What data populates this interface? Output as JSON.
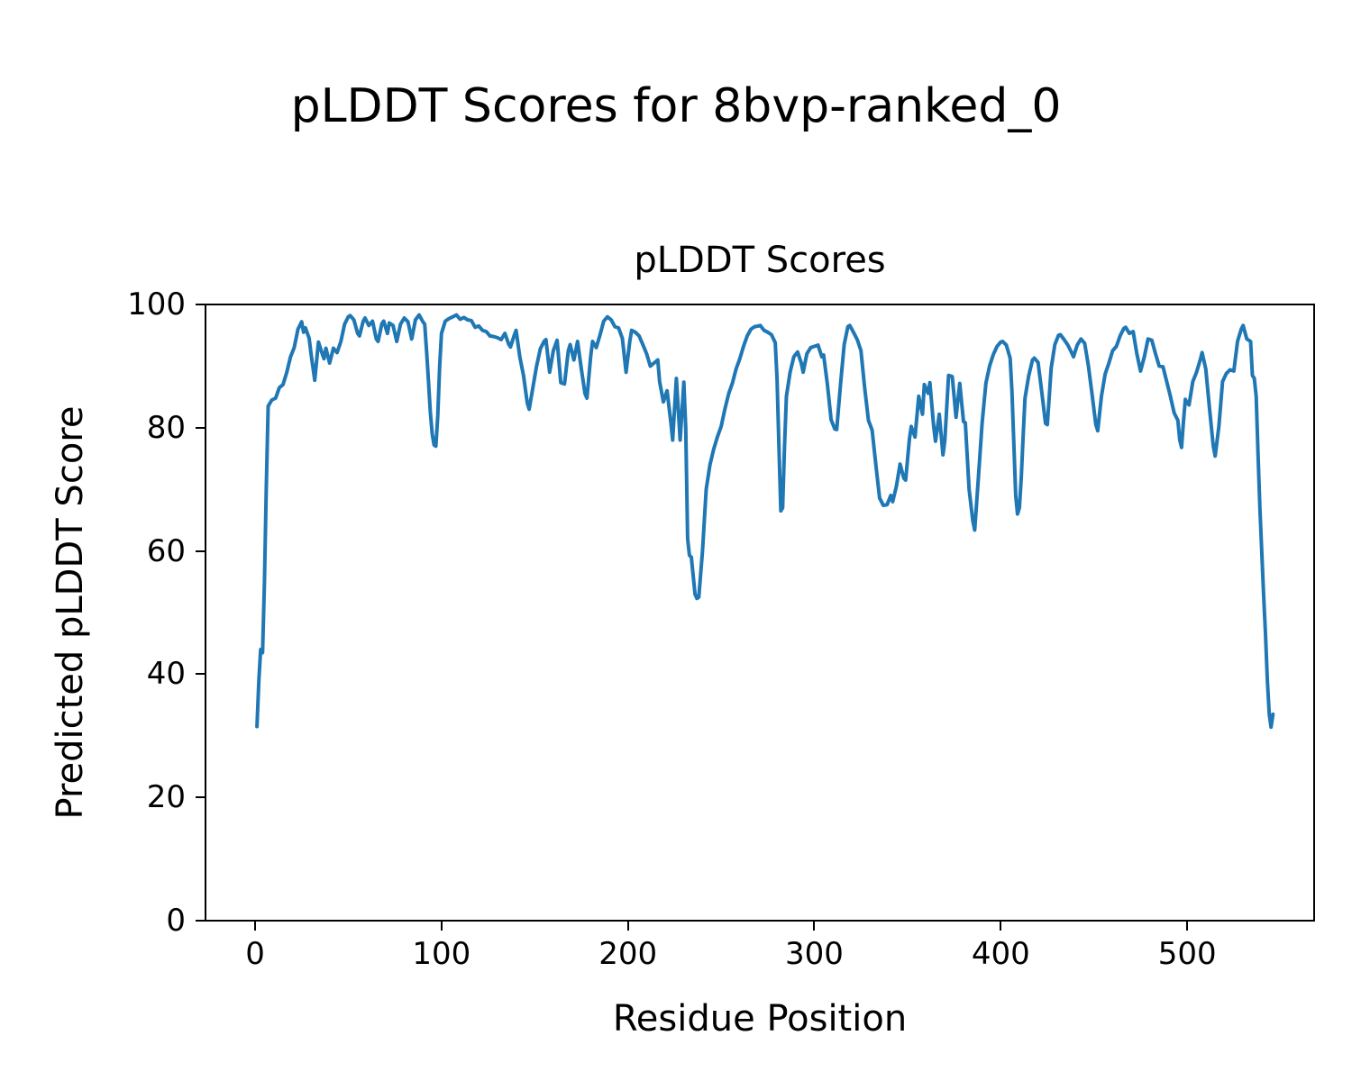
{
  "figure": {
    "suptitle": "pLDDT Scores for 8bvp-ranked_0"
  },
  "chart_data": {
    "type": "line",
    "title": "pLDDT Scores",
    "xlabel": "Residue Position",
    "ylabel": "Predicted pLDDT Score",
    "x_ticks": [
      0,
      100,
      200,
      300,
      400,
      500
    ],
    "y_ticks": [
      0,
      20,
      40,
      60,
      80,
      100
    ],
    "xlim": [
      -26.6,
      568.1
    ],
    "ylim": [
      0,
      100
    ],
    "grid": false,
    "legend": false,
    "line_color": "#1f77b4",
    "background": "#ffffff",
    "series": [
      {
        "name": "pLDDT",
        "x": [
          1,
          2,
          3,
          4,
          5,
          6,
          7,
          9,
          11,
          13,
          15,
          17,
          19,
          21,
          23,
          25,
          26,
          27,
          29,
          30,
          32,
          34,
          36,
          37,
          38,
          40,
          42,
          44,
          46,
          48,
          50,
          51,
          53,
          55,
          56,
          58,
          59,
          61,
          63,
          65,
          66,
          68,
          69,
          71,
          72,
          74,
          76,
          78,
          80,
          82,
          84,
          86,
          88,
          90,
          91,
          92,
          93,
          94,
          95,
          96,
          97,
          98,
          99,
          100,
          102,
          104,
          106,
          108,
          110,
          112,
          114,
          116,
          118,
          120,
          122,
          124,
          126,
          128,
          130,
          132,
          134,
          136,
          137,
          139,
          140,
          142,
          144,
          146,
          147,
          149,
          151,
          153,
          155,
          156,
          158,
          160,
          162,
          164,
          166,
          168,
          169,
          171,
          173,
          175,
          177,
          178,
          180,
          181,
          183,
          185,
          187,
          189,
          191,
          193,
          195,
          197,
          199,
          201,
          202,
          204,
          206,
          208,
          210,
          212,
          214,
          216,
          217,
          219,
          221,
          223,
          224,
          226,
          228,
          230,
          231,
          232,
          233,
          234,
          236,
          237,
          238,
          240,
          242,
          244,
          246,
          248,
          250,
          252,
          254,
          256,
          258,
          260,
          262,
          264,
          266,
          268,
          270,
          271,
          273,
          275,
          277,
          279,
          280,
          281,
          282,
          283,
          284,
          285,
          287,
          289,
          291,
          293,
          294,
          296,
          298,
          300,
          302,
          304,
          305,
          307,
          309,
          311,
          312,
          314,
          316,
          318,
          319,
          321,
          323,
          325,
          327,
          329,
          331,
          333,
          335,
          337,
          339,
          341,
          342,
          344,
          346,
          348,
          349,
          351,
          352,
          354,
          356,
          358,
          359,
          361,
          362,
          364,
          365,
          367,
          369,
          370,
          372,
          374,
          376,
          378,
          380,
          381,
          383,
          385,
          386,
          388,
          390,
          392,
          394,
          396,
          398,
          400,
          401,
          403,
          405,
          406,
          407,
          408,
          409,
          410,
          411,
          412,
          413,
          415,
          417,
          418,
          420,
          422,
          424,
          425,
          427,
          429,
          431,
          432,
          434,
          436,
          438,
          439,
          441,
          443,
          445,
          447,
          449,
          451,
          452,
          454,
          456,
          458,
          460,
          462,
          464,
          466,
          467,
          469,
          471,
          473,
          475,
          477,
          479,
          481,
          483,
          485,
          487,
          489,
          491,
          493,
          495,
          496,
          497,
          498,
          499,
          500,
          501,
          503,
          505,
          507,
          508,
          510,
          512,
          514,
          515,
          517,
          519,
          521,
          523,
          525,
          527,
          529,
          530,
          532,
          534,
          535,
          536,
          537,
          538,
          539,
          540,
          541,
          542,
          543,
          544,
          545,
          546
        ],
        "y": [
          31.5,
          39,
          44,
          43.5,
          55,
          70,
          83.5,
          84.5,
          84.8,
          86.5,
          87,
          89,
          91.5,
          93,
          96,
          97.2,
          95.5,
          96.2,
          94.5,
          92,
          87.7,
          93.9,
          92,
          91.2,
          92.9,
          90.5,
          92.9,
          92.2,
          94,
          96.8,
          98,
          98.2,
          97.5,
          95.3,
          94.9,
          97.3,
          97.8,
          96.6,
          97.3,
          94.4,
          94,
          96.9,
          97.3,
          95.3,
          97,
          96.6,
          94,
          96.8,
          97.8,
          97.2,
          94.4,
          97.5,
          98.3,
          97.2,
          96.8,
          92.4,
          87.5,
          82.6,
          79,
          77.2,
          77,
          82,
          90,
          95.3,
          97.3,
          97.7,
          98,
          98.3,
          97.6,
          97.9,
          97.5,
          97.4,
          96.3,
          96.5,
          95.8,
          95.6,
          94.9,
          94.8,
          94.6,
          94.3,
          95.3,
          93.6,
          93.1,
          95,
          95.8,
          91.5,
          88.5,
          84,
          83,
          86.5,
          90,
          92.8,
          94,
          94.3,
          89,
          92.5,
          94.2,
          87.3,
          87.1,
          92.5,
          93.5,
          91,
          94,
          89.5,
          85.5,
          84.8,
          91.5,
          94,
          93,
          95,
          97.3,
          98,
          97.5,
          96.4,
          96.2,
          94.5,
          89,
          94,
          95.8,
          95.5,
          94.9,
          93.5,
          92,
          90,
          90.5,
          91,
          87.5,
          84.2,
          86,
          81,
          78,
          88,
          78,
          87.4,
          80,
          62,
          59.3,
          59,
          53,
          52.3,
          52.5,
          60,
          70,
          74,
          76.5,
          78.5,
          80.2,
          83,
          85.5,
          87.2,
          89.5,
          91.2,
          93.2,
          94.9,
          96,
          96.4,
          96.5,
          96.6,
          95.8,
          95.5,
          95.1,
          93.8,
          88,
          77,
          66.5,
          67,
          77,
          85.1,
          89,
          91.5,
          92.3,
          90.5,
          89,
          92,
          93,
          93.2,
          93.4,
          91.5,
          91.8,
          87,
          81.3,
          79.8,
          79.7,
          87,
          93.5,
          96.4,
          96.6,
          95.5,
          94.3,
          92.5,
          86.5,
          81.2,
          79.6,
          74,
          68.6,
          67.4,
          67.5,
          69,
          68,
          70.5,
          74.1,
          71.8,
          71.5,
          78.2,
          80.2,
          78.5,
          85.1,
          82.2,
          87,
          85.6,
          87.3,
          80.2,
          77.8,
          82.2,
          75.6,
          78,
          88.5,
          88.3,
          81.7,
          87.2,
          81,
          80.8,
          70,
          64.9,
          63.4,
          71.9,
          80.7,
          87.2,
          90,
          91.9,
          93.2,
          93.9,
          94,
          93.4,
          91.3,
          86,
          77.5,
          69,
          66,
          67,
          72,
          78.5,
          84.8,
          88.4,
          91,
          91.3,
          90.6,
          85.8,
          80.7,
          80.5,
          89.6,
          93.5,
          95,
          95.1,
          94.3,
          93.4,
          92.2,
          91.5,
          93.4,
          94.4,
          93.7,
          90.1,
          85.3,
          80.5,
          79.5,
          85.1,
          88.7,
          90.5,
          92.5,
          93.2,
          94.9,
          96.1,
          96.3,
          95.3,
          95.6,
          92,
          89.2,
          91.5,
          94.4,
          94.2,
          92,
          90,
          89.9,
          87.5,
          85.1,
          82.4,
          81.2,
          78,
          76.8,
          81,
          84.6,
          84,
          83.7,
          87.5,
          89,
          91,
          92.2,
          89.5,
          83,
          77,
          75.4,
          80.2,
          87.5,
          88.8,
          89.4,
          89.2,
          94,
          96,
          96.6,
          94.4,
          94,
          88.5,
          88,
          85.1,
          76,
          67,
          59.8,
          53,
          46.6,
          39,
          33.5,
          31.4,
          33.5
        ]
      }
    ]
  }
}
